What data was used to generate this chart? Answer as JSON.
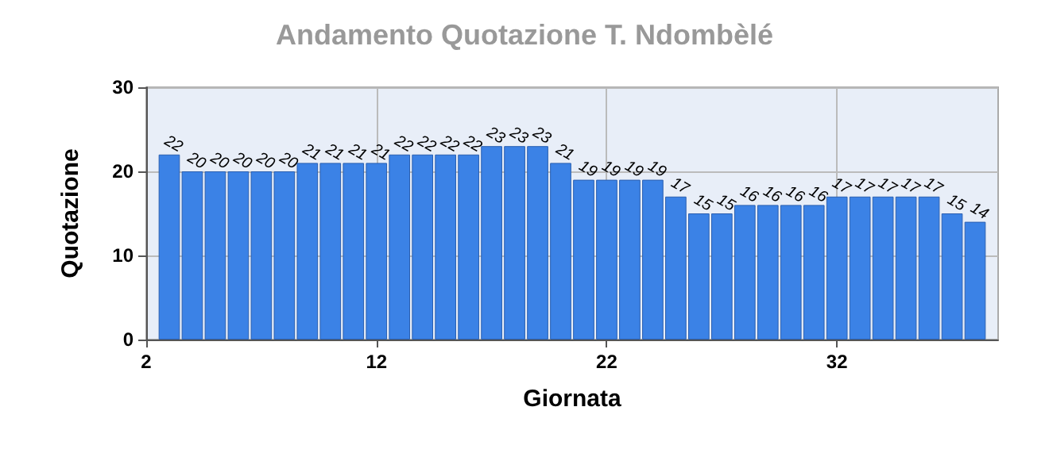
{
  "chart_data": {
    "type": "bar",
    "title": "Andamento Quotazione T. Ndombèlé",
    "xlabel": "Giornata",
    "ylabel": "Quotazione",
    "x": [
      3,
      4,
      5,
      6,
      7,
      8,
      9,
      10,
      11,
      12,
      13,
      14,
      15,
      16,
      17,
      18,
      19,
      20,
      21,
      22,
      23,
      24,
      25,
      26,
      27,
      28,
      29,
      30,
      31,
      32,
      33,
      34,
      35,
      36,
      37,
      38
    ],
    "values": [
      22,
      20,
      20,
      20,
      20,
      20,
      21,
      21,
      21,
      21,
      22,
      22,
      22,
      22,
      23,
      23,
      23,
      21,
      19,
      19,
      19,
      19,
      17,
      15,
      15,
      16,
      16,
      16,
      16,
      17,
      17,
      17,
      17,
      17,
      15,
      14
    ],
    "color": "#3b82e6",
    "data_labels": true,
    "grid": true,
    "xlim": [
      2,
      39
    ],
    "xticks": [
      2,
      12,
      22,
      32
    ],
    "ylim": [
      0,
      30
    ],
    "yticks": [
      0,
      10,
      20,
      30
    ]
  }
}
